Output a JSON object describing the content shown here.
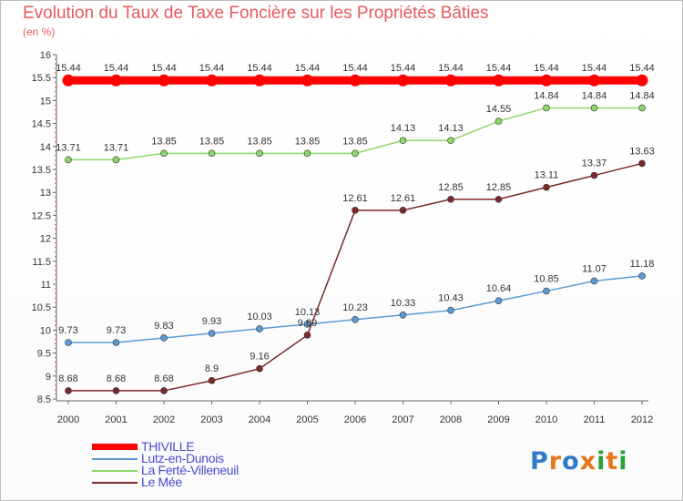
{
  "title": "Evolution du Taux de Taxe Foncière sur les Propriétés Bâties",
  "subtitle": "(en %)",
  "logo": {
    "letters": [
      "P",
      "r",
      "o",
      "x",
      "i",
      "t",
      "i"
    ],
    "colors": [
      "#2e7bc6",
      "#e8761a",
      "#2e7bc6",
      "#e8761a",
      "#27a23b",
      "#e8761a",
      "#27a23b"
    ]
  },
  "chart_data": {
    "type": "line",
    "x": [
      "2000",
      "2001",
      "2002",
      "2003",
      "2004",
      "2005",
      "2006",
      "2007",
      "2008",
      "2009",
      "2010",
      "2011",
      "2012"
    ],
    "ylim": [
      8.5,
      16
    ],
    "yticks": [
      "8.5",
      "9",
      "9.5",
      "10",
      "10.5",
      "11",
      "11.5",
      "12",
      "12.5",
      "13",
      "13.5",
      "14",
      "14.5",
      "15",
      "15.5",
      "16"
    ],
    "grid": false,
    "legend_position": "bottom-left",
    "series": [
      {
        "name": "THIVILLE",
        "color": "#ff0000",
        "values": [
          15.44,
          15.44,
          15.44,
          15.44,
          15.44,
          15.44,
          15.44,
          15.44,
          15.44,
          15.44,
          15.44,
          15.44,
          15.44
        ],
        "labels": [
          "15.44",
          "15.44",
          "15.44",
          "15.44",
          "15.44",
          "15.44",
          "15.44",
          "15.44",
          "15.44",
          "15.44",
          "15.44",
          "15.44",
          "15.44"
        ]
      },
      {
        "name": "Lutz-en-Dunois",
        "color": "#5b9bd5",
        "values": [
          9.73,
          9.73,
          9.83,
          9.93,
          10.03,
          10.13,
          10.23,
          10.33,
          10.43,
          10.64,
          10.85,
          11.07,
          11.18
        ],
        "labels": [
          "9.73",
          "9.73",
          "9.83",
          "9.93",
          "10.03",
          "10.13",
          "10.23",
          "10.33",
          "10.43",
          "10.64",
          "10.85",
          "11.07",
          "11.18"
        ]
      },
      {
        "name": "La Ferté-Villeneuil",
        "color": "#8fd66a",
        "values": [
          13.71,
          13.71,
          13.85,
          13.85,
          13.85,
          13.85,
          13.85,
          14.13,
          14.13,
          14.55,
          14.84,
          14.84,
          14.84
        ],
        "labels": [
          "13.71",
          "13.71",
          "13.85",
          "13.85",
          "13.85",
          "13.85",
          "13.85",
          "14.13",
          "14.13",
          "14.55",
          "14.84",
          "14.84",
          "14.84"
        ]
      },
      {
        "name": "Le Mée",
        "color": "#7b2a2a",
        "values": [
          8.68,
          8.68,
          8.68,
          8.9,
          9.16,
          9.89,
          12.61,
          12.61,
          12.85,
          12.85,
          13.11,
          13.37,
          13.63
        ],
        "labels": [
          "8.68",
          "8.68",
          "8.68",
          "8.9",
          "9.16",
          "9.89",
          "12.61",
          "12.61",
          "12.85",
          "12.85",
          "13.11",
          "13.37",
          "13.63"
        ]
      }
    ]
  }
}
